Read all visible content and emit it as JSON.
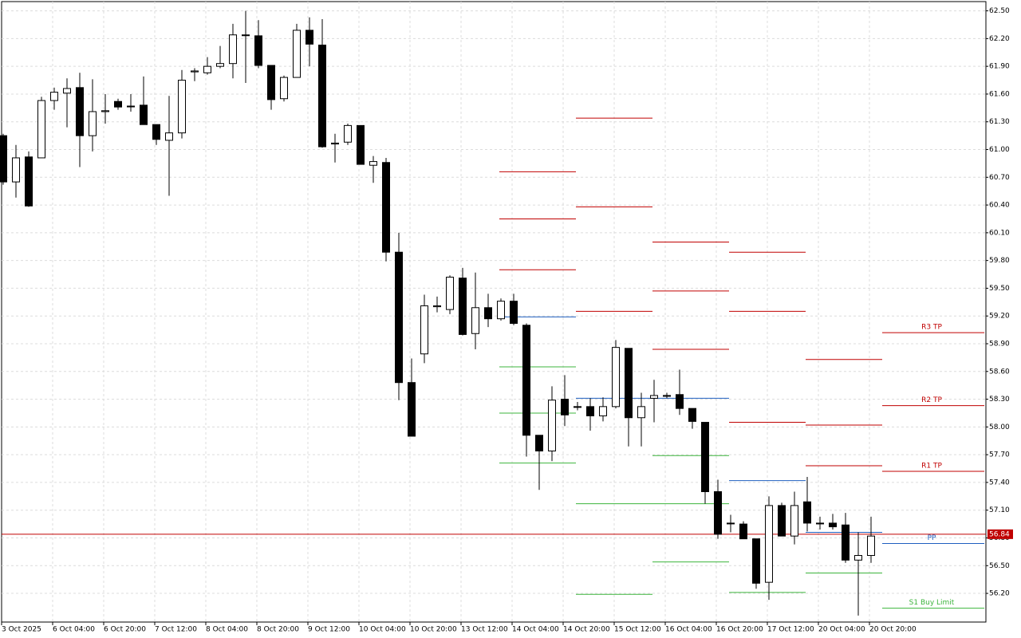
{
  "chart_data": {
    "type": "candlestick",
    "ylim": [
      55.89,
      62.6
    ],
    "yticks": [
      {
        "value": 62.5,
        "label": "62.50"
      },
      {
        "value": 62.2,
        "label": "62.20"
      },
      {
        "value": 61.9,
        "label": "61.90"
      },
      {
        "value": 61.6,
        "label": "61.60"
      },
      {
        "value": 61.3,
        "label": "61.30"
      },
      {
        "value": 61.0,
        "label": "61.00"
      },
      {
        "value": 60.7,
        "label": "60.70"
      },
      {
        "value": 60.4,
        "label": "60.40"
      },
      {
        "value": 60.1,
        "label": "60.10"
      },
      {
        "value": 59.8,
        "label": "59.80"
      },
      {
        "value": 59.5,
        "label": "59.50"
      },
      {
        "value": 59.2,
        "label": "59.20"
      },
      {
        "value": 58.9,
        "label": "58.90"
      },
      {
        "value": 58.6,
        "label": "58.60"
      },
      {
        "value": 58.3,
        "label": "58.30"
      },
      {
        "value": 58.0,
        "label": "58.00"
      },
      {
        "value": 57.7,
        "label": "57.70"
      },
      {
        "value": 57.4,
        "label": "57.40"
      },
      {
        "value": 57.1,
        "label": "57.10"
      },
      {
        "value": 56.8,
        "label": "56.80"
      },
      {
        "value": 56.5,
        "label": "56.50"
      },
      {
        "value": 56.2,
        "label": "56.20"
      }
    ],
    "grid": true,
    "categories": [
      "3 Oct 2025",
      null,
      null,
      null,
      "6 Oct 04:00",
      null,
      null,
      null,
      "6 Oct 20:00",
      null,
      null,
      null,
      "7 Oct 12:00",
      null,
      null,
      null,
      "8 Oct 04:00",
      null,
      null,
      null,
      "8 Oct 20:00",
      null,
      null,
      null,
      "9 Oct 12:00",
      null,
      null,
      null,
      "10 Oct 04:00",
      null,
      null,
      null,
      "10 Oct 20:00",
      null,
      null,
      null,
      "13 Oct 12:00",
      null,
      null,
      null,
      "14 Oct 04:00",
      null,
      null,
      null,
      "14 Oct 20:00",
      null,
      null,
      null,
      "15 Oct 12:00",
      null,
      null,
      null,
      "16 Oct 04:00",
      null,
      null,
      null,
      "16 Oct 20:00",
      null,
      null,
      null,
      "17 Oct 12:00",
      null,
      null,
      null,
      "20 Oct 04:00",
      null,
      null,
      null,
      "20 Oct 20:00"
    ],
    "series": [
      {
        "up_color": "#ffffff",
        "down_color": "#000000",
        "outline": "#000000",
        "open": [
          61.15,
          60.65,
          60.92,
          60.91,
          61.53,
          61.61,
          61.67,
          61.15,
          61.41,
          61.52,
          61.47,
          61.48,
          61.27,
          61.1,
          61.18,
          61.84,
          61.83,
          61.9,
          61.93,
          62.24,
          62.23,
          61.91,
          61.55,
          61.78,
          62.29,
          62.13,
          61.06,
          61.08,
          61.26,
          60.83,
          60.86,
          59.89,
          58.48,
          58.79,
          59.3,
          59.27,
          59.61,
          59.01,
          59.29,
          59.17,
          59.36,
          59.1,
          57.91,
          57.74,
          58.3,
          58.22,
          58.22,
          58.12,
          58.22,
          58.85,
          58.1,
          58.31,
          58.34,
          58.35,
          58.2,
          58.05,
          57.3,
          56.96,
          56.95,
          56.79,
          56.32,
          57.15,
          56.82,
          57.19,
          56.96,
          56.96,
          56.94,
          56.56,
          56.61
        ],
        "high": [
          61.17,
          61.05,
          60.98,
          61.57,
          61.67,
          61.77,
          61.83,
          61.76,
          61.6,
          61.55,
          61.6,
          61.79,
          61.27,
          61.58,
          61.86,
          61.88,
          62.0,
          62.12,
          62.36,
          62.5,
          62.4,
          61.91,
          61.8,
          62.36,
          62.43,
          62.41,
          61.17,
          61.28,
          61.26,
          60.93,
          60.91,
          60.1,
          58.74,
          59.43,
          59.41,
          59.64,
          59.72,
          59.67,
          59.44,
          59.39,
          59.44,
          59.12,
          57.91,
          58.44,
          58.56,
          58.27,
          58.31,
          58.32,
          58.94,
          58.85,
          58.37,
          58.51,
          58.37,
          58.62,
          58.2,
          58.05,
          57.43,
          57.05,
          56.98,
          56.79,
          57.25,
          57.18,
          57.3,
          57.46,
          57.03,
          57.06,
          57.07,
          56.86,
          57.03
        ],
        "low": [
          60.62,
          60.48,
          60.38,
          60.91,
          61.43,
          61.24,
          60.81,
          60.98,
          61.28,
          61.43,
          61.41,
          61.27,
          61.05,
          60.5,
          61.12,
          61.74,
          61.81,
          61.88,
          61.77,
          61.72,
          61.88,
          61.43,
          61.52,
          61.78,
          61.9,
          61.02,
          60.86,
          61.05,
          60.84,
          60.64,
          59.79,
          58.29,
          57.9,
          58.69,
          59.24,
          59.22,
          58.99,
          58.84,
          59.08,
          59.15,
          59.1,
          57.68,
          57.32,
          57.63,
          58.01,
          58.18,
          57.96,
          58.06,
          58.2,
          57.79,
          57.79,
          58.05,
          58.31,
          58.13,
          57.98,
          57.17,
          56.79,
          56.86,
          56.79,
          56.25,
          56.13,
          56.82,
          56.73,
          56.87,
          56.89,
          56.89,
          56.53,
          55.96,
          56.53
        ],
        "close": [
          60.65,
          60.91,
          60.39,
          61.53,
          61.62,
          61.66,
          61.15,
          61.41,
          61.42,
          61.46,
          61.47,
          61.27,
          61.11,
          61.18,
          61.75,
          61.85,
          61.9,
          61.93,
          62.24,
          62.24,
          61.91,
          61.54,
          61.78,
          62.29,
          62.14,
          61.03,
          61.07,
          61.26,
          60.84,
          60.87,
          59.89,
          58.48,
          57.9,
          59.31,
          59.31,
          59.62,
          59.0,
          59.29,
          59.17,
          59.36,
          59.12,
          57.91,
          57.74,
          58.29,
          58.13,
          58.22,
          58.12,
          58.22,
          58.86,
          58.1,
          58.22,
          58.34,
          58.34,
          58.2,
          58.06,
          57.3,
          56.84,
          56.96,
          56.79,
          56.31,
          57.15,
          56.82,
          57.15,
          56.96,
          56.96,
          56.92,
          56.56,
          56.61,
          56.82
        ]
      }
    ],
    "current_price": 56.84,
    "current_price_color": "#c00000",
    "level_colors": {
      "resistance": "#c00000",
      "pivot": "#1f5fbf",
      "support": "#3cb43c"
    },
    "levels": [
      {
        "period": 0,
        "price": 60.76,
        "kind": "resistance"
      },
      {
        "period": 0,
        "price": 60.25,
        "kind": "resistance"
      },
      {
        "period": 0,
        "price": 59.7,
        "kind": "resistance"
      },
      {
        "period": 0,
        "price": 59.19,
        "kind": "pivot"
      },
      {
        "period": 0,
        "price": 58.65,
        "kind": "support"
      },
      {
        "period": 0,
        "price": 58.15,
        "kind": "support"
      },
      {
        "period": 0,
        "price": 57.61,
        "kind": "support"
      },
      {
        "period": 1,
        "price": 61.34,
        "kind": "resistance"
      },
      {
        "period": 1,
        "price": 60.38,
        "kind": "resistance"
      },
      {
        "period": 1,
        "price": 59.25,
        "kind": "resistance"
      },
      {
        "period": 1,
        "price": 58.31,
        "kind": "pivot"
      },
      {
        "period": 1,
        "price": 57.17,
        "kind": "support"
      },
      {
        "period": 1,
        "price": 56.19,
        "kind": "support"
      },
      {
        "period": 2,
        "price": 60.0,
        "kind": "resistance"
      },
      {
        "period": 2,
        "price": 59.47,
        "kind": "resistance"
      },
      {
        "period": 2,
        "price": 58.84,
        "kind": "resistance"
      },
      {
        "period": 2,
        "price": 58.31,
        "kind": "pivot"
      },
      {
        "period": 2,
        "price": 57.69,
        "kind": "support"
      },
      {
        "period": 2,
        "price": 57.17,
        "kind": "support"
      },
      {
        "period": 2,
        "price": 56.54,
        "kind": "support"
      },
      {
        "period": 3,
        "price": 59.89,
        "kind": "resistance"
      },
      {
        "period": 3,
        "price": 59.25,
        "kind": "resistance"
      },
      {
        "period": 3,
        "price": 58.05,
        "kind": "resistance"
      },
      {
        "period": 3,
        "price": 57.42,
        "kind": "pivot"
      },
      {
        "period": 3,
        "price": 56.21,
        "kind": "support"
      },
      {
        "period": 4,
        "price": 58.73,
        "kind": "resistance"
      },
      {
        "period": 4,
        "price": 58.02,
        "kind": "resistance"
      },
      {
        "period": 4,
        "price": 57.58,
        "kind": "resistance"
      },
      {
        "period": 4,
        "price": 56.86,
        "kind": "pivot"
      },
      {
        "period": 4,
        "price": 56.42,
        "kind": "support"
      },
      {
        "period": 5,
        "price": 59.02,
        "kind": "resistance",
        "label": "R3 TP"
      },
      {
        "period": 5,
        "price": 58.23,
        "kind": "resistance",
        "label": "R2 TP"
      },
      {
        "period": 5,
        "price": 57.52,
        "kind": "resistance",
        "label": "R1 TP"
      },
      {
        "period": 5,
        "price": 56.74,
        "kind": "pivot",
        "label": "PP"
      },
      {
        "period": 5,
        "price": 56.04,
        "kind": "support",
        "label": "S1 Buy Limit"
      }
    ]
  }
}
